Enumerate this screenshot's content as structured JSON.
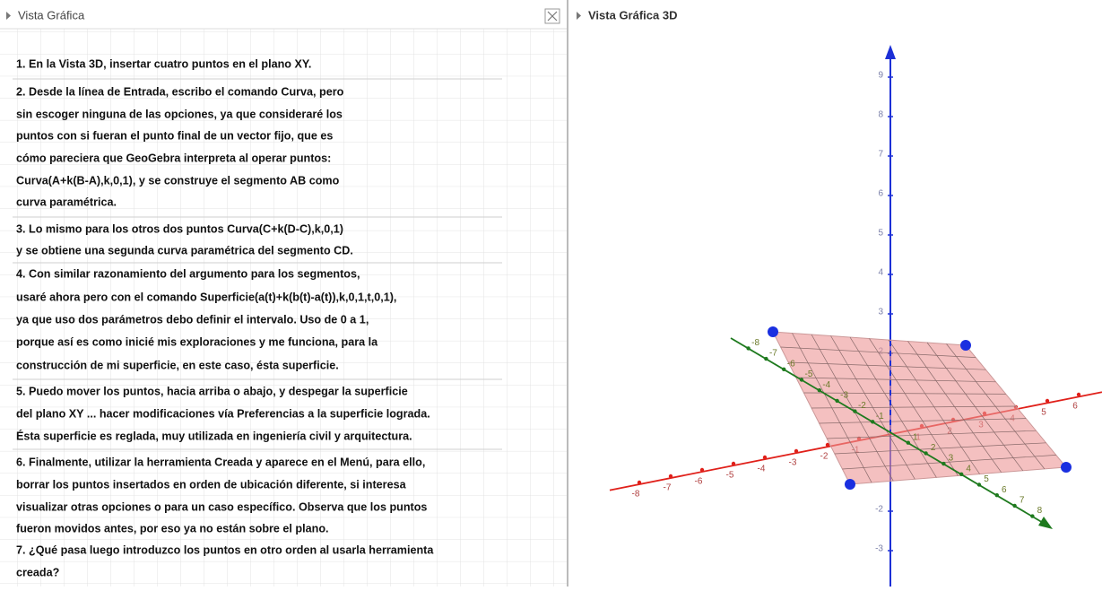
{
  "left_panel": {
    "title": "Vista Gráfica",
    "lines": [
      "1. En la Vista 3D, insertar cuatro puntos en el plano XY.",
      "2. Desde la línea de Entrada, escribo el comando Curva, pero",
      "sin escoger ninguna de las opciones, ya que consideraré los",
      "puntos con si fueran el punto final de un vector fijo, que es",
      "cómo pareciera que GeoGebra interpreta al operar puntos:",
      "Curva(A+k(B-A),k,0,1), y se construye el segmento AB como",
      "curva paramétrica.",
      "3. Lo mismo para los otros dos puntos Curva(C+k(D-C),k,0,1)",
      "y se obtiene una segunda curva paramétrica del segmento CD.",
      "4. Con similar razonamiento del argumento para los segmentos,",
      "usaré ahora pero con el comando Superficie(a(t)+k(b(t)-a(t)),k,0,1,t,0,1),",
      "ya que uso dos parámetros debo definir el intervalo. Uso de 0 a 1,",
      "porque así es como inicié mis exploraciones y me funciona, para la",
      "construcción de mi superficie, en este caso, ésta superficie.",
      "5. Puedo mover los puntos, hacia arriba o abajo, y despegar la superficie",
      "del plano XY ... hacer modificaciones vía Preferencias a la superficie lograda.",
      "Ésta superficie es reglada, muy utilizada en ingeniería civil y arquitectura.",
      "6. Finalmente, utilizar la herramienta Creada y aparece en el Menú, para ello,",
      "borrar los puntos insertados en orden de ubicación diferente, si interesa",
      "visualizar otras opciones o para un caso específico. Observa que los puntos",
      "fueron movidos antes, por eso ya no están sobre el plano.",
      "7. ¿Qué pasa luego introduzco los puntos en otro orden al usarla herramienta",
      "creada?"
    ]
  },
  "right_panel": {
    "title": "Vista Gráfica 3D",
    "z_ticks": [
      9,
      8,
      7,
      6,
      5,
      4,
      3,
      2,
      -2,
      -3
    ],
    "x_ticks": [
      -8,
      -7,
      -6,
      -5,
      -4,
      -3,
      -2,
      -1,
      1,
      2,
      3,
      4,
      5,
      6
    ],
    "y_ticks": [
      -8,
      -7,
      -6,
      -5,
      -4,
      -3,
      -2,
      -1,
      1,
      2,
      3,
      4,
      5,
      6,
      7,
      8
    ]
  }
}
